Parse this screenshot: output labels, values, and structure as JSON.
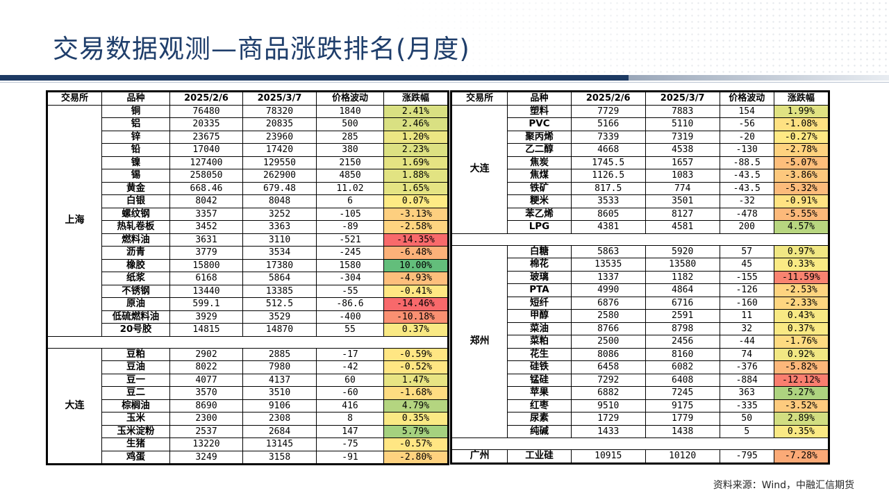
{
  "title": "交易数据观测—商品涨跌排名(月度)",
  "source": "资料来源：Wind，中融汇信期货",
  "headers": [
    "交易所",
    "品种",
    "2025/2/6",
    "2025/3/7",
    "价格波动",
    "涨跌幅"
  ],
  "colors": {
    "accent": "#1f3e6b",
    "up_strong": "#63be7b",
    "neutral": "#ffeb84",
    "down_strong": "#f8696b"
  },
  "left_groups": [
    {
      "exchange": "上海",
      "rows": [
        [
          "铜",
          "76480",
          "78320",
          "1840",
          "2.41%"
        ],
        [
          "铝",
          "20335",
          "20835",
          "500",
          "2.46%"
        ],
        [
          "锌",
          "23675",
          "23960",
          "285",
          "1.20%"
        ],
        [
          "铅",
          "17040",
          "17420",
          "380",
          "2.23%"
        ],
        [
          "镍",
          "127400",
          "129550",
          "2150",
          "1.69%"
        ],
        [
          "锡",
          "258050",
          "262900",
          "4850",
          "1.88%"
        ],
        [
          "黄金",
          "668.46",
          "679.48",
          "11.02",
          "1.65%"
        ],
        [
          "白银",
          "8042",
          "8048",
          "6",
          "0.07%"
        ],
        [
          "螺纹钢",
          "3357",
          "3252",
          "-105",
          "-3.13%"
        ],
        [
          "热轧卷板",
          "3452",
          "3363",
          "-89",
          "-2.58%"
        ],
        [
          "燃料油",
          "3631",
          "3110",
          "-521",
          "-14.35%"
        ],
        [
          "沥青",
          "3779",
          "3534",
          "-245",
          "-6.48%"
        ],
        [
          "橡胶",
          "15800",
          "17380",
          "1580",
          "10.00%"
        ],
        [
          "纸浆",
          "6168",
          "5864",
          "-304",
          "-4.93%"
        ],
        [
          "不锈钢",
          "13440",
          "13385",
          "-55",
          "-0.41%"
        ],
        [
          "原油",
          "599.1",
          "512.5",
          "-86.6",
          "-14.46%"
        ],
        [
          "低硫燃料油",
          "3929",
          "3529",
          "-400",
          "-10.18%"
        ],
        [
          "20号胶",
          "14815",
          "14870",
          "55",
          "0.37%"
        ]
      ]
    },
    {
      "exchange": "大连",
      "rows": [
        [
          "豆粕",
          "2902",
          "2885",
          "-17",
          "-0.59%"
        ],
        [
          "豆油",
          "8022",
          "7980",
          "-42",
          "-0.52%"
        ],
        [
          "豆一",
          "4077",
          "4137",
          "60",
          "1.47%"
        ],
        [
          "豆二",
          "3570",
          "3510",
          "-60",
          "-1.68%"
        ],
        [
          "棕榈油",
          "8690",
          "9106",
          "416",
          "4.79%"
        ],
        [
          "玉米",
          "2300",
          "2308",
          "8",
          "0.35%"
        ],
        [
          "玉米淀粉",
          "2537",
          "2684",
          "147",
          "5.79%"
        ],
        [
          "生猪",
          "13220",
          "13145",
          "-75",
          "-0.57%"
        ],
        [
          "鸡蛋",
          "3249",
          "3158",
          "-91",
          "-2.80%"
        ]
      ]
    }
  ],
  "right_groups": [
    {
      "exchange": "大连",
      "rows": [
        [
          "塑料",
          "7729",
          "7883",
          "154",
          "1.99%"
        ],
        [
          "PVC",
          "5166",
          "5110",
          "-56",
          "-1.08%"
        ],
        [
          "聚丙烯",
          "7339",
          "7319",
          "-20",
          "-0.27%"
        ],
        [
          "乙二醇",
          "4668",
          "4538",
          "-130",
          "-2.78%"
        ],
        [
          "焦炭",
          "1745.5",
          "1657",
          "-88.5",
          "-5.07%"
        ],
        [
          "焦煤",
          "1126.5",
          "1083",
          "-43.5",
          "-3.86%"
        ],
        [
          "铁矿",
          "817.5",
          "774",
          "-43.5",
          "-5.32%"
        ],
        [
          "粳米",
          "3533",
          "3501",
          "-32",
          "-0.91%"
        ],
        [
          "苯乙烯",
          "8605",
          "8127",
          "-478",
          "-5.55%"
        ],
        [
          "LPG",
          "4381",
          "4581",
          "200",
          "4.57%"
        ]
      ]
    },
    {
      "exchange": "郑州",
      "rows": [
        [
          "白糖",
          "5863",
          "5920",
          "57",
          "0.97%"
        ],
        [
          "棉花",
          "13535",
          "13580",
          "45",
          "0.33%"
        ],
        [
          "玻璃",
          "1337",
          "1182",
          "-155",
          "-11.59%"
        ],
        [
          "PTA",
          "4990",
          "4864",
          "-126",
          "-2.53%"
        ],
        [
          "短纤",
          "6876",
          "6716",
          "-160",
          "-2.33%"
        ],
        [
          "甲醇",
          "2580",
          "2591",
          "11",
          "0.43%"
        ],
        [
          "菜油",
          "8766",
          "8798",
          "32",
          "0.37%"
        ],
        [
          "菜粕",
          "2500",
          "2456",
          "-44",
          "-1.76%"
        ],
        [
          "花生",
          "8086",
          "8160",
          "74",
          "0.92%"
        ],
        [
          "硅铁",
          "6458",
          "6082",
          "-376",
          "-5.82%"
        ],
        [
          "锰硅",
          "7292",
          "6408",
          "-884",
          "-12.12%"
        ],
        [
          "苹果",
          "6882",
          "7245",
          "363",
          "5.27%"
        ],
        [
          "红枣",
          "9510",
          "9175",
          "-335",
          "-3.52%"
        ],
        [
          "尿素",
          "1729",
          "1779",
          "50",
          "2.89%"
        ],
        [
          "纯碱",
          "1433",
          "1438",
          "5",
          "0.35%"
        ]
      ]
    },
    {
      "exchange": "广州",
      "rows": [
        [
          "工业硅",
          "10915",
          "10120",
          "-795",
          "-7.28%"
        ]
      ]
    }
  ]
}
